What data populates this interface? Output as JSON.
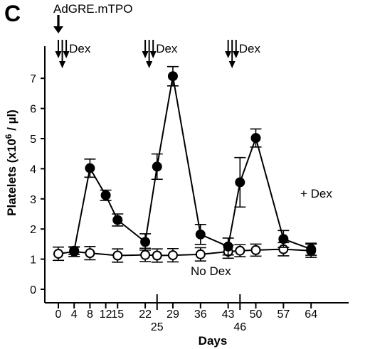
{
  "panel_label": "C",
  "chart_data": {
    "type": "line",
    "xlabel": "Days",
    "ylabel_pre": "Platelets (x10",
    "ylabel_sup": "6",
    "ylabel_post": " / µl)",
    "ylim": [
      0,
      7.5
    ],
    "yticks": [
      0,
      1,
      2,
      3,
      4,
      5,
      6,
      7
    ],
    "xticks": [
      0,
      4,
      8,
      12,
      15,
      22,
      25,
      29,
      36,
      43,
      46,
      50,
      57,
      64
    ],
    "xlim": [
      -3,
      67
    ],
    "grid": false,
    "series": [
      {
        "name": "+ Dex",
        "marker": "filled",
        "x": [
          4,
          8,
          12,
          15,
          22,
          25,
          29,
          36,
          43,
          46,
          50,
          57,
          64
        ],
        "y": [
          1.28,
          4.02,
          3.12,
          2.3,
          1.57,
          4.07,
          7.07,
          1.82,
          1.42,
          3.55,
          5.02,
          1.67,
          1.33
        ],
        "err": [
          0.12,
          0.3,
          0.17,
          0.2,
          0.27,
          0.42,
          0.32,
          0.33,
          0.28,
          0.82,
          0.3,
          0.28,
          0.2
        ]
      },
      {
        "name": "No Dex",
        "marker": "open",
        "x": [
          0,
          4,
          8,
          15,
          22,
          25,
          29,
          36,
          43,
          46,
          50,
          57,
          64
        ],
        "y": [
          1.18,
          1.25,
          1.2,
          1.12,
          1.14,
          1.12,
          1.13,
          1.16,
          1.25,
          1.28,
          1.3,
          1.33,
          1.28
        ],
        "err": [
          0.22,
          0.16,
          0.22,
          0.22,
          0.22,
          0.22,
          0.22,
          0.22,
          0.22,
          0.2,
          0.2,
          0.22,
          0.22
        ]
      }
    ],
    "annotations": {
      "vector": {
        "label": "AdGRE.mTPO",
        "day": 0
      },
      "dex_label": "Dex",
      "dex_groups": [
        [
          0,
          1,
          2
        ],
        [
          22,
          23,
          24
        ],
        [
          43,
          44,
          45
        ]
      ],
      "tick_markers": [
        25,
        46
      ]
    }
  }
}
